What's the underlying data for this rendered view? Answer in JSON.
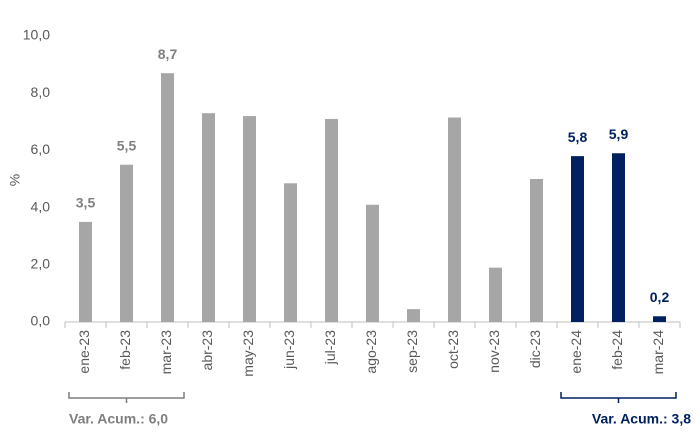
{
  "chart_data": {
    "type": "bar",
    "y_label": "%",
    "categories": [
      "ene-23",
      "feb-23",
      "mar-23",
      "abr-23",
      "may-23",
      "jun-23",
      "jul-23",
      "ago-23",
      "sep-23",
      "oct-23",
      "nov-23",
      "dic-23",
      "ene-24",
      "feb-24",
      "mar-24"
    ],
    "values": [
      3.5,
      5.5,
      8.7,
      7.3,
      7.2,
      4.85,
      7.1,
      4.1,
      0.45,
      7.15,
      1.9,
      5.0,
      5.8,
      5.9,
      0.2
    ],
    "value_labels": [
      "3,5",
      "5,5",
      "8,7",
      null,
      null,
      null,
      null,
      null,
      null,
      null,
      null,
      null,
      "5,8",
      "5,9",
      "0,2"
    ],
    "colors": [
      "#a6a6a6",
      "#a6a6a6",
      "#a6a6a6",
      "#a6a6a6",
      "#a6a6a6",
      "#a6a6a6",
      "#a6a6a6",
      "#a6a6a6",
      "#a6a6a6",
      "#a6a6a6",
      "#a6a6a6",
      "#a6a6a6",
      "#002060",
      "#002060",
      "#002060"
    ],
    "ylim": [
      0,
      10
    ],
    "yticks": [
      {
        "value": 0,
        "label": "0,0"
      },
      {
        "value": 2,
        "label": "2,0"
      },
      {
        "value": 4,
        "label": "4,0"
      },
      {
        "value": 6,
        "label": "6,0"
      },
      {
        "value": 8,
        "label": "8,0"
      },
      {
        "value": 10,
        "label": "10,0"
      }
    ],
    "grid": false,
    "annotations": [
      {
        "text": "Var. Acum.: 6,0",
        "color": "#7f7f7f"
      },
      {
        "text": "Var. Acum.: 3,8",
        "color": "#002060"
      }
    ]
  }
}
